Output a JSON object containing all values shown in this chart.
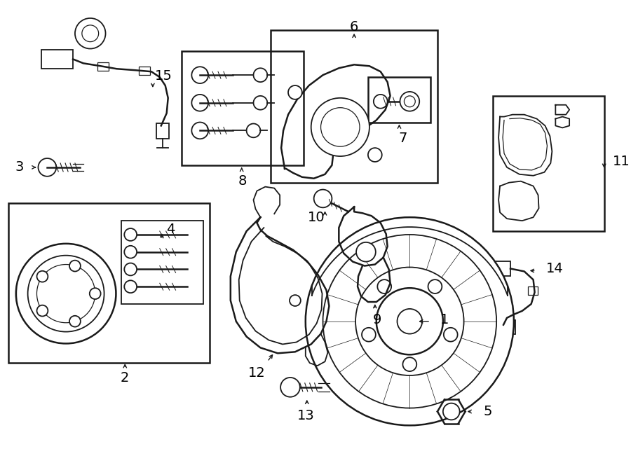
{
  "bg_color": "#ffffff",
  "line_color": "#1a1a1a",
  "fig_width": 9.0,
  "fig_height": 6.61,
  "dpi": 100,
  "font_size": 14
}
